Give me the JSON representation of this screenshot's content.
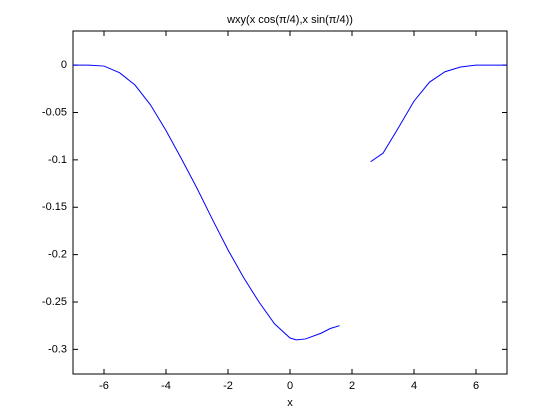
{
  "chart_data": {
    "type": "line",
    "title": "wxy(x cos(π/4),x sin(π/4))",
    "x_label": "x",
    "x": [
      -7,
      -6.5,
      -6,
      -5.5,
      -5,
      -4.5,
      -4,
      -3.5,
      -3,
      -2.5,
      -2,
      -1.5,
      -1,
      -0.5,
      0,
      0.2,
      0.5,
      1,
      1.3,
      1.6,
      2.1,
      2.6,
      3,
      3.5,
      4,
      4.5,
      5,
      5.5,
      6,
      6.5,
      7
    ],
    "series": [
      {
        "color": "#0000ff",
        "values": [
          0,
          0,
          -0.001,
          -0.008,
          -0.021,
          -0.042,
          -0.069,
          -0.099,
          -0.13,
          -0.163,
          -0.195,
          -0.224,
          -0.25,
          -0.273,
          -0.288,
          -0.29,
          -0.289,
          -0.283,
          -0.278,
          -0.275,
          null,
          -0.102,
          -0.093,
          -0.066,
          -0.038,
          -0.018,
          -0.007,
          -0.002,
          0,
          0,
          0
        ]
      }
    ],
    "xlim": [
      -7,
      7
    ],
    "ylim": [
      -0.326,
      0.036
    ],
    "xticks": [
      -6,
      -4,
      -2,
      0,
      2,
      4,
      6
    ],
    "yticks": [
      0,
      -0.05,
      -0.1,
      -0.15,
      -0.2,
      -0.25,
      -0.3
    ]
  }
}
